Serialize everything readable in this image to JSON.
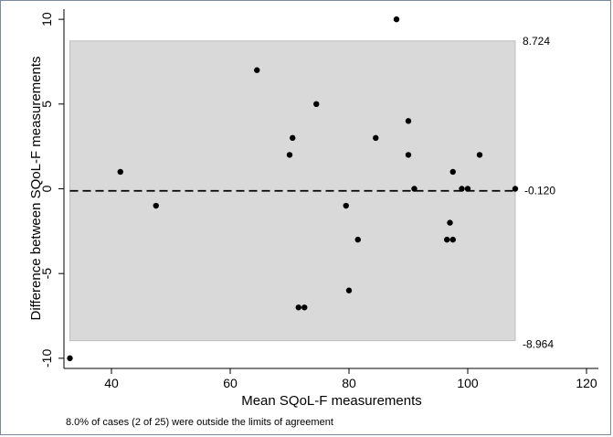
{
  "chart_data": {
    "type": "scatter",
    "title": "",
    "xlabel": "Mean SQoL-F measurements",
    "ylabel": "Difference between SQoL-F measurements",
    "xlim": [
      32,
      122
    ],
    "ylim": [
      -10.6,
      10.6
    ],
    "xticks": [
      40,
      60,
      80,
      100,
      120
    ],
    "yticks": [
      -10,
      -5,
      0,
      5,
      10
    ],
    "grid": false,
    "limits_of_agreement": {
      "upper": 8.724,
      "lower": -8.964,
      "upper_label": "8.724",
      "lower_label": "-8.964"
    },
    "mean_difference": {
      "value": -0.12,
      "label": "-0.120"
    },
    "band_x_range": [
      33,
      108
    ],
    "points": [
      {
        "x": 33,
        "y": -10
      },
      {
        "x": 41.5,
        "y": 1
      },
      {
        "x": 47.5,
        "y": -1
      },
      {
        "x": 64.5,
        "y": 7
      },
      {
        "x": 70,
        "y": 2
      },
      {
        "x": 70.5,
        "y": 3
      },
      {
        "x": 71.5,
        "y": -7
      },
      {
        "x": 72.5,
        "y": -7
      },
      {
        "x": 74.5,
        "y": 5
      },
      {
        "x": 79.5,
        "y": -1
      },
      {
        "x": 80,
        "y": -6
      },
      {
        "x": 81.5,
        "y": -3
      },
      {
        "x": 84.5,
        "y": 3
      },
      {
        "x": 88,
        "y": 10
      },
      {
        "x": 90,
        "y": 4
      },
      {
        "x": 90,
        "y": 2
      },
      {
        "x": 91,
        "y": 0
      },
      {
        "x": 96.5,
        "y": -3
      },
      {
        "x": 97,
        "y": -2
      },
      {
        "x": 97.5,
        "y": -3
      },
      {
        "x": 97.5,
        "y": 1
      },
      {
        "x": 99,
        "y": 0
      },
      {
        "x": 100,
        "y": 0
      },
      {
        "x": 102,
        "y": 2
      },
      {
        "x": 108,
        "y": 0
      }
    ],
    "note": "8.0% of cases (2 of 25) were outside the limits of agreement",
    "colors": {
      "band": "#d9d9d9",
      "band_edge": "#bdbdbd",
      "point": "#000000",
      "mean_line": "#000000"
    }
  }
}
